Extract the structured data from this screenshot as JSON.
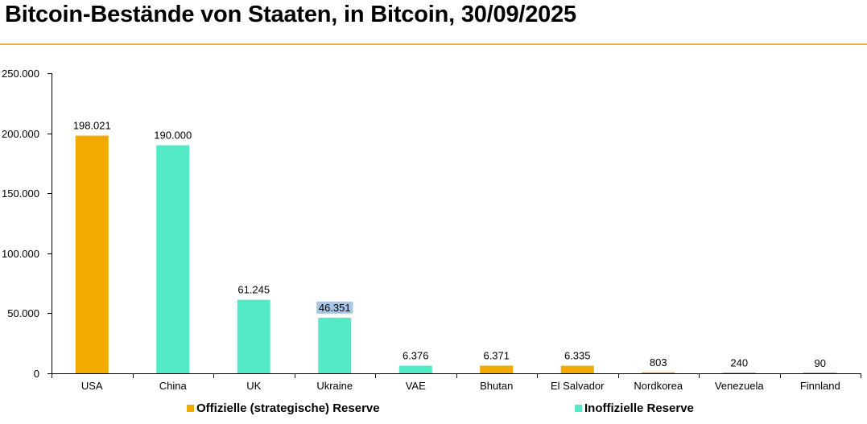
{
  "chart_data": {
    "type": "bar",
    "title": "Bitcoin-Bestände von Staaten, in Bitcoin, 30/09/2025",
    "categories": [
      "USA",
      "China",
      "UK",
      "Ukraine",
      "VAE",
      "Bhutan",
      "El Salvador",
      "Nordkorea",
      "Venezuela",
      "Finnland"
    ],
    "values": [
      198021,
      190000,
      61245,
      46351,
      6376,
      6371,
      6335,
      803,
      240,
      90
    ],
    "value_labels": [
      "198.021",
      "190.000",
      "61.245",
      "46.351",
      "6.376",
      "6.371",
      "6.335",
      "803",
      "240",
      "90"
    ],
    "bar_series": [
      "official",
      "unofficial",
      "unofficial",
      "unofficial",
      "unofficial",
      "official",
      "official",
      "official",
      "official",
      "official"
    ],
    "series": [
      {
        "key": "official",
        "name": "Offizielle (strategische) Reserve",
        "color": "#f0aa00"
      },
      {
        "key": "unofficial",
        "name": "Inoffizielle Reserve",
        "color": "#55eac6"
      }
    ],
    "ylim": [
      0,
      250000
    ],
    "yticks": [
      0,
      50000,
      100000,
      150000,
      200000,
      250000
    ],
    "ytick_labels": [
      "0",
      "50.000",
      "100.000",
      "150.000",
      "200.000",
      "250.000"
    ],
    "highlighted_label": "Ukraine",
    "highlight_color": "#a9c6e8",
    "grid": false,
    "legend_position": "bottom",
    "title_rule_color": "#e5b53c"
  }
}
